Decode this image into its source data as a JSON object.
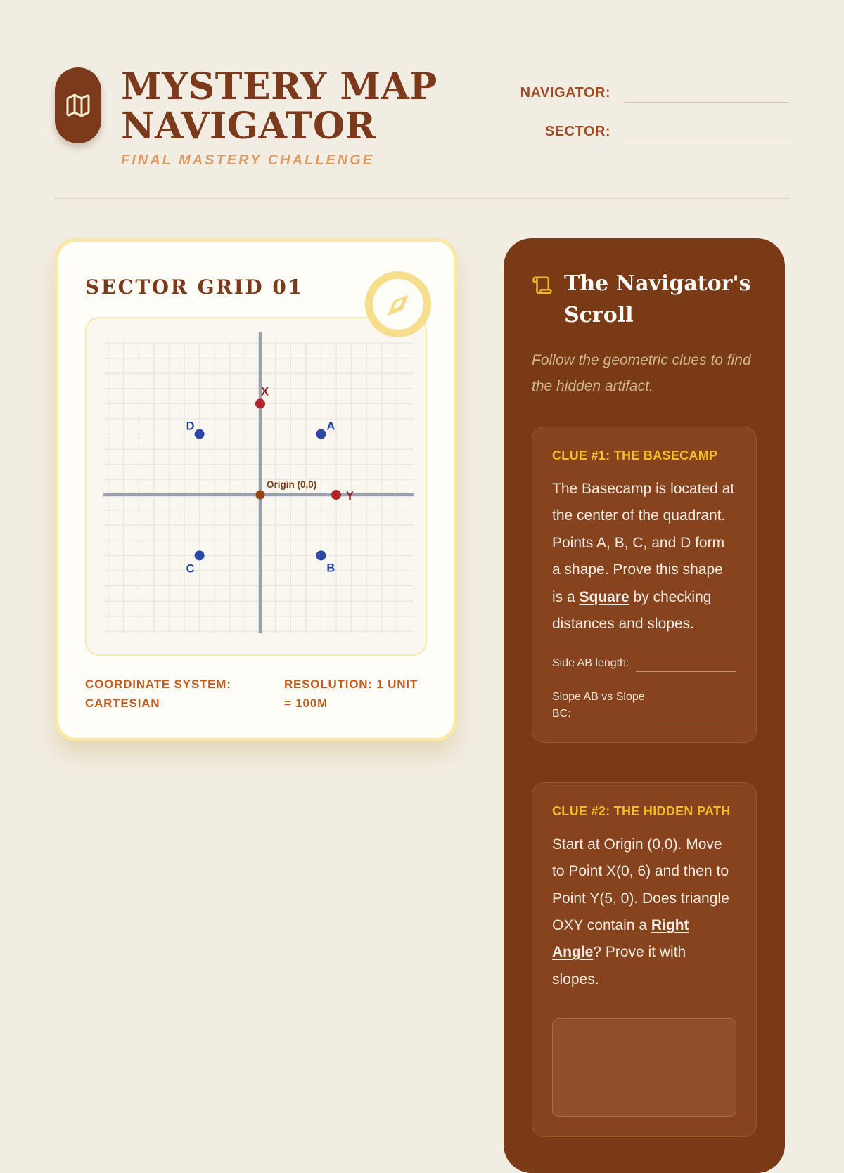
{
  "header": {
    "title_line1": "MYSTERY MAP",
    "title_line2": "NAVIGATOR",
    "subtitle": "FINAL MASTERY CHALLENGE",
    "fields": [
      {
        "label": "NAVIGATOR:",
        "value": ""
      },
      {
        "label": "SECTOR:",
        "value": ""
      }
    ]
  },
  "map_card": {
    "title": "SECTOR GRID 01",
    "footer_left": "COORDINATE SYSTEM: CARTESIAN",
    "footer_right": "RESOLUTION: 1 UNIT = 100M"
  },
  "chart_data": {
    "type": "scatter",
    "title": "SECTOR GRID 01",
    "resolution": "1 unit = 100m",
    "coordinate_system": "Cartesian",
    "x_range": [
      -10,
      10
    ],
    "y_range": [
      -10,
      10
    ],
    "grid": true,
    "points": [
      {
        "label": "X",
        "x": 0,
        "y": 6,
        "dot_color": "#b2232d",
        "label_color": "#8d1f1f",
        "anchor": "top"
      },
      {
        "label": "A",
        "x": 4,
        "y": 4,
        "dot_color": "#2b48a7",
        "label_color": "#23409f",
        "anchor": "top-right"
      },
      {
        "label": "D",
        "x": -4,
        "y": 4,
        "dot_color": "#2b48a7",
        "label_color": "#23409f",
        "anchor": "top-left"
      },
      {
        "label": "B",
        "x": 4,
        "y": -4,
        "dot_color": "#2b48a7",
        "label_color": "#23409f",
        "anchor": "bottom-right"
      },
      {
        "label": "C",
        "x": -4,
        "y": -4,
        "dot_color": "#2b48a7",
        "label_color": "#23409f",
        "anchor": "bottom-left"
      },
      {
        "label": "Y",
        "x": 5,
        "y": 0,
        "dot_color": "#b2232d",
        "label_color": "#8d1f1f",
        "anchor": "right"
      },
      {
        "label": "Origin (0,0)",
        "x": 0,
        "y": 0,
        "dot_color": "#92450e",
        "label_color": "#7c3c16",
        "anchor": "origin"
      }
    ]
  },
  "scroll_panel": {
    "title": "The Navigator's Scroll",
    "subtitle": "Follow the geometric clues to find the hidden artifact.",
    "clues": [
      {
        "heading": "CLUE #1: THE BASECAMP",
        "body": [
          {
            "text": "The Basecamp is located at the center of the quadrant. Points A, B, C, and D form a shape. Prove this shape is a "
          },
          {
            "text": "Square",
            "strong": true
          },
          {
            "text": " by checking distances and slopes."
          }
        ],
        "inputs": [
          {
            "label": "Side AB length:",
            "value": ""
          },
          {
            "label": "Slope AB vs Slope BC:",
            "value": ""
          }
        ],
        "answer_box": false
      },
      {
        "heading": "CLUE #2: THE HIDDEN PATH",
        "body": [
          {
            "text": "Start at Origin (0,0). Move to Point X(0, 6) and then to Point Y(5, 0). Does triangle OXY contain a "
          },
          {
            "text": "Right Angle",
            "strong": true
          },
          {
            "text": "? Prove it with slopes."
          }
        ],
        "inputs": [],
        "answer_box": true
      }
    ]
  },
  "icons": {
    "logo": "map-icon",
    "card": "compass-icon",
    "panel": "scroll-icon"
  },
  "colors": {
    "page_bg": "#f2ede3",
    "brand_brown": "#7b3a1b",
    "accent_orange": "#bf5c20",
    "subtitle_tan": "#db9b67",
    "card_border_yellow": "#fae8a6",
    "sidebar_bg": "#7b3a16",
    "clue_box_bg": "#87431d",
    "clue_heading_yellow": "#f5bd25",
    "point_blue": "#2b48a7",
    "point_red": "#b2232d",
    "axis_gray": "#9aa2af"
  }
}
